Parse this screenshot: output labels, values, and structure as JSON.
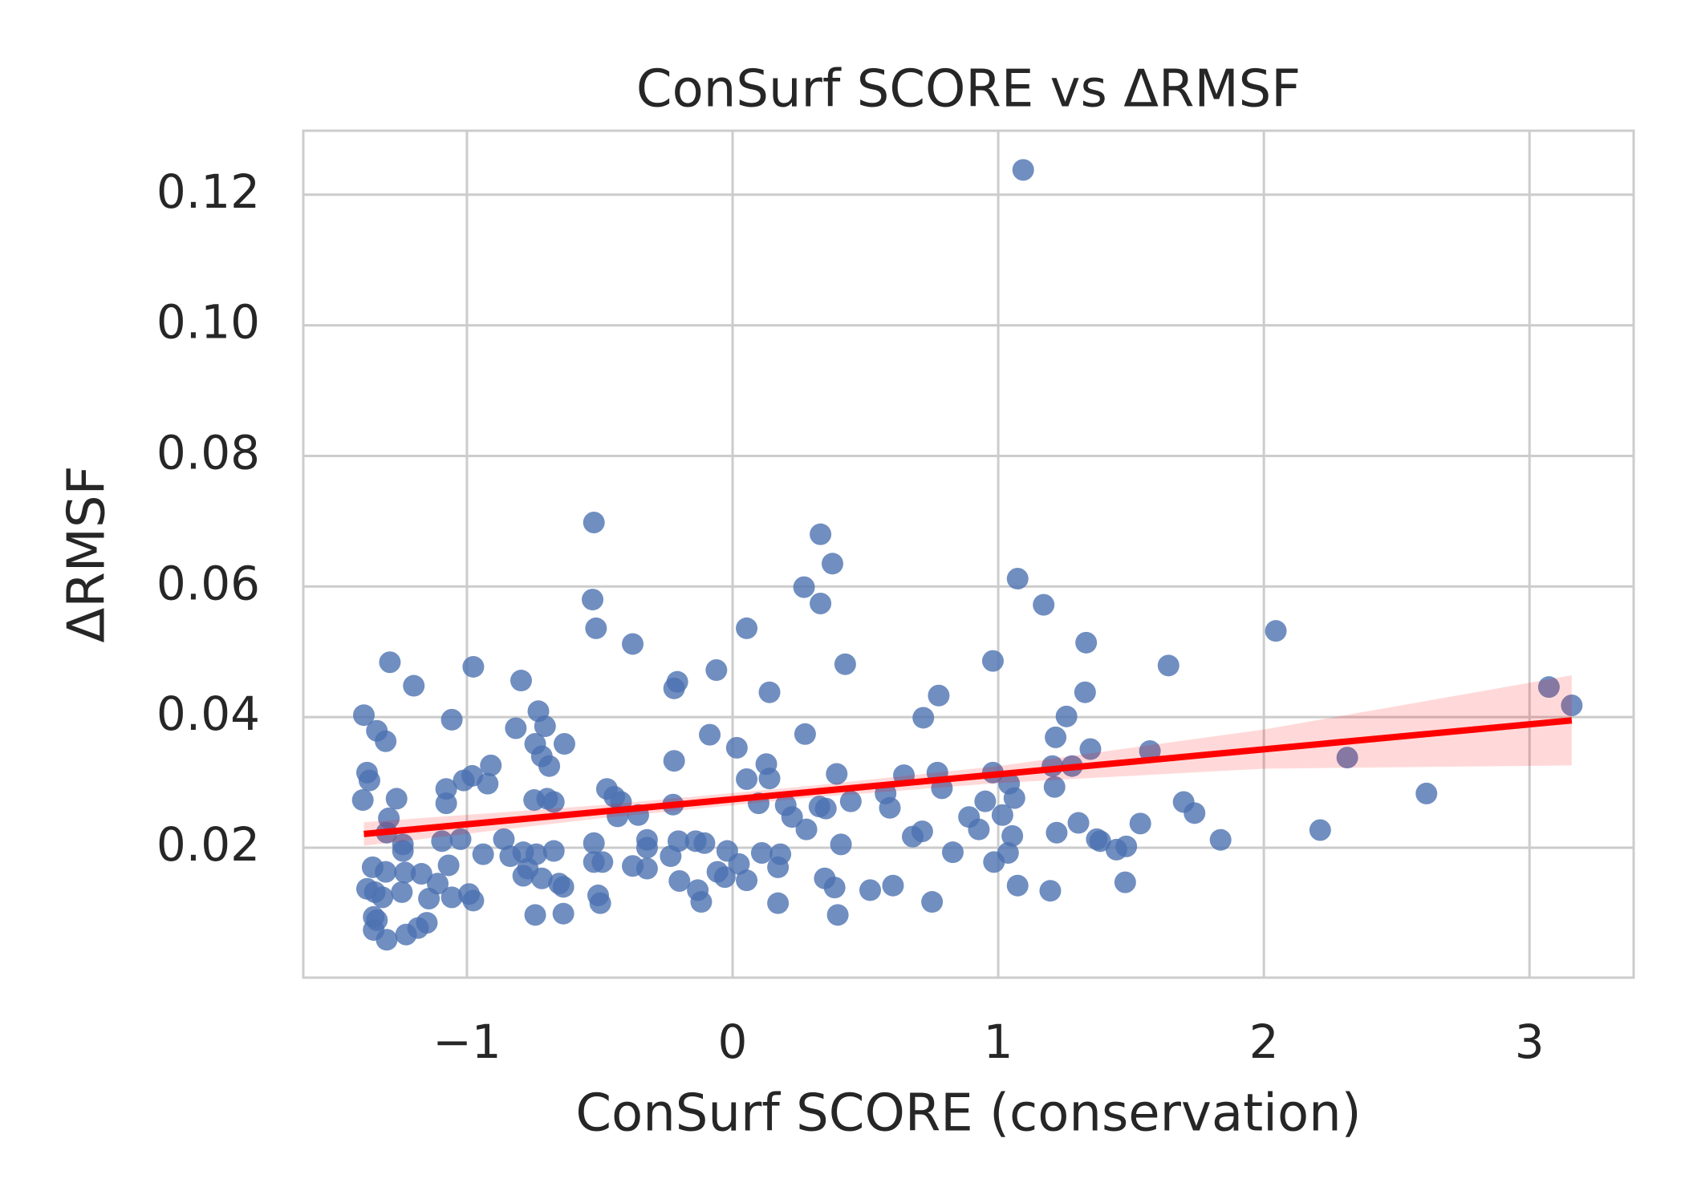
{
  "chart_data": {
    "type": "scatter",
    "title": "ConSurf SCORE vs ΔRMSF",
    "xlabel": "ConSurf SCORE (conservation)",
    "ylabel": "ΔRMSF",
    "xlim": [
      -1.616,
      3.392
    ],
    "ylim": [
      0.0001,
      0.1298
    ],
    "xticks": [
      {
        "value": -1,
        "label": "−1"
      },
      0,
      1,
      2,
      3
    ],
    "yticks": [
      0.02,
      0.04,
      0.06,
      0.08,
      {
        "value": 0.1,
        "label": "0.10"
      },
      0.12
    ],
    "grid": true,
    "color": "#4c72b0",
    "x": [
      1.094,
      -0.522,
      0.331,
      0.376,
      -0.527,
      0.269,
      0.331,
      1.073,
      1.171,
      -0.514,
      0.053,
      2.045,
      -0.376,
      1.331,
      -1.29,
      -0.976,
      -0.061,
      0.424,
      0.98,
      1.641,
      -0.796,
      -1.2,
      -0.208,
      -0.22,
      0.139,
      0.776,
      1.327,
      3.073,
      3.159,
      -1.388,
      -1.057,
      -0.731,
      0.718,
      1.257,
      -1.339,
      -0.816,
      -0.706,
      -1.306,
      -0.086,
      0.273,
      1.216,
      -0.743,
      -0.633,
      0.016,
      1.347,
      1.571,
      2.314,
      -0.718,
      -0.91,
      -0.69,
      -0.22,
      0.127,
      -1.376,
      -1.367,
      -0.98,
      -1.012,
      -0.922,
      0.053,
      0.139,
      0.392,
      0.645,
      0.771,
      0.98,
      1.204,
      1.278,
      -1.078,
      -0.473,
      0.788,
      1.041,
      1.212,
      2.612,
      -1.392,
      -1.265,
      -1.078,
      -0.747,
      -0.698,
      -0.673,
      -0.445,
      -0.42,
      -0.224,
      0.098,
      0.2,
      0.327,
      0.445,
      0.576,
      0.951,
      1.061,
      1.698,
      1.739,
      -1.294,
      -0.433,
      -0.355,
      0.224,
      0.351,
      0.592,
      0.89,
      1.016,
      1.302,
      1.535,
      -1.302,
      -1.241,
      0.278,
      0.678,
      0.714,
      0.927,
      1.053,
      1.22,
      2.212,
      -1.094,
      -1.024,
      -0.861,
      -0.522,
      -0.322,
      -0.204,
      -0.139,
      -0.106,
      0.408,
      1.371,
      1.384,
      1.837,
      -1.241,
      -0.939,
      -0.837,
      -0.788,
      -0.739,
      -0.673,
      -0.322,
      -0.233,
      -0.02,
      0.11,
      0.18,
      0.829,
      1.037,
      1.445,
      1.482,
      -1.355,
      -1.306,
      -1.069,
      -0.771,
      -0.522,
      -0.49,
      -0.376,
      -0.322,
      -0.057,
      0.024,
      0.171,
      0.984,
      -1.233,
      -1.171,
      -0.788,
      -0.718,
      -0.029,
      0.053,
      0.347,
      -0.2,
      -1.11,
      -0.653,
      -0.637,
      1.478,
      -1.376,
      -1.347,
      -1.245,
      -0.131,
      0.384,
      0.518,
      0.604,
      1.073,
      1.196,
      -1.318,
      -1.143,
      -1.057,
      -0.992,
      -0.976,
      -0.506,
      -0.498,
      -0.118,
      0.171,
      0.751,
      -1.351,
      -1.339,
      -0.743,
      -0.637,
      0.396,
      -1.151,
      -1.184,
      -1.351,
      -1.229,
      -1.302
    ],
    "y": [
      0.1238,
      0.0698,
      0.068,
      0.0635,
      0.058,
      0.0599,
      0.0574,
      0.0612,
      0.0572,
      0.0536,
      0.0536,
      0.0532,
      0.0512,
      0.0514,
      0.0484,
      0.0477,
      0.0472,
      0.0481,
      0.0486,
      0.0479,
      0.0456,
      0.0448,
      0.0454,
      0.0444,
      0.0438,
      0.0433,
      0.0438,
      0.0446,
      0.0418,
      0.0403,
      0.0396,
      0.0409,
      0.0399,
      0.0401,
      0.0379,
      0.0383,
      0.0386,
      0.0363,
      0.0373,
      0.0374,
      0.0369,
      0.0359,
      0.0359,
      0.0353,
      0.0351,
      0.0348,
      0.0338,
      0.034,
      0.0326,
      0.0325,
      0.0333,
      0.0328,
      0.0315,
      0.0303,
      0.031,
      0.0303,
      0.0298,
      0.0305,
      0.0306,
      0.0313,
      0.0311,
      0.0315,
      0.0315,
      0.0325,
      0.0325,
      0.029,
      0.029,
      0.0291,
      0.0298,
      0.0293,
      0.0283,
      0.0273,
      0.0275,
      0.0268,
      0.0273,
      0.0275,
      0.027,
      0.0278,
      0.027,
      0.0266,
      0.0268,
      0.0265,
      0.0263,
      0.0271,
      0.0283,
      0.0271,
      0.0276,
      0.027,
      0.0253,
      0.0245,
      0.0248,
      0.025,
      0.0247,
      0.026,
      0.0261,
      0.0247,
      0.025,
      0.0238,
      0.0237,
      0.0223,
      0.0205,
      0.0228,
      0.0217,
      0.0225,
      0.0228,
      0.0218,
      0.0223,
      0.0227,
      0.021,
      0.0213,
      0.0213,
      0.0207,
      0.0212,
      0.021,
      0.021,
      0.0207,
      0.0205,
      0.0213,
      0.021,
      0.0212,
      0.0195,
      0.019,
      0.0187,
      0.0193,
      0.019,
      0.0195,
      0.02,
      0.0187,
      0.0195,
      0.0192,
      0.019,
      0.0193,
      0.0192,
      0.0197,
      0.0202,
      0.017,
      0.0163,
      0.0173,
      0.0168,
      0.0178,
      0.0178,
      0.0172,
      0.0168,
      0.0163,
      0.0175,
      0.017,
      0.0178,
      0.0162,
      0.016,
      0.0157,
      0.0153,
      0.0155,
      0.015,
      0.0153,
      0.0149,
      0.0145,
      0.0145,
      0.014,
      0.0147,
      0.0137,
      0.0132,
      0.0132,
      0.0135,
      0.0139,
      0.0135,
      0.0142,
      0.0142,
      0.0134,
      0.0124,
      0.0122,
      0.0124,
      0.0129,
      0.0119,
      0.0127,
      0.0115,
      0.0117,
      0.0115,
      0.0117,
      0.0094,
      0.0089,
      0.0097,
      0.0099,
      0.0097,
      0.0085,
      0.0077,
      0.0074,
      0.0067,
      0.0059
    ],
    "fit": {
      "color": "#ff0000",
      "x": [
        -1.388,
        3.159
      ],
      "y": [
        0.0221,
        0.0395
      ],
      "band_x": [
        -1.388,
        -0.5,
        0.3,
        1.0,
        2.0,
        3.159
      ],
      "band_lower": [
        0.0203,
        0.0245,
        0.0277,
        0.0299,
        0.0321,
        0.0326
      ],
      "band_upper": [
        0.0239,
        0.0265,
        0.0295,
        0.0325,
        0.0381,
        0.0464
      ]
    }
  }
}
